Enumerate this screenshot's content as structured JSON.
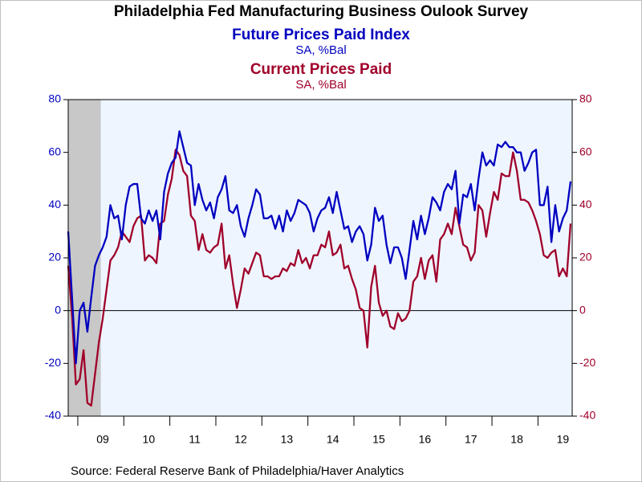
{
  "chart_data": {
    "type": "line",
    "title": "Philadelphia Fed Manufacturing Business Oulook Survey",
    "source": "Source:  Federal Reserve Bank of Philadelphia/Haver Analytics",
    "categories": [
      null,
      null,
      null,
      null,
      null,
      null,
      null,
      null,
      null,
      "09",
      null,
      null,
      null,
      null,
      null,
      null,
      null,
      null,
      null,
      null,
      null,
      "10",
      null,
      null,
      null,
      null,
      null,
      null,
      null,
      null,
      null,
      null,
      null,
      "11",
      null,
      null,
      null,
      null,
      null,
      null,
      null,
      null,
      null,
      null,
      null,
      "12",
      null,
      null,
      null,
      null,
      null,
      null,
      null,
      null,
      null,
      null,
      null,
      "13",
      null,
      null,
      null,
      null,
      null,
      null,
      null,
      null,
      null,
      null,
      null,
      "14",
      null,
      null,
      null,
      null,
      null,
      null,
      null,
      null,
      null,
      null,
      null,
      "15",
      null,
      null,
      null,
      null,
      null,
      null,
      null,
      null,
      null,
      null,
      null,
      "16",
      null,
      null,
      null,
      null,
      null,
      null,
      null,
      null,
      null,
      null,
      null,
      "17",
      null,
      null,
      null,
      null,
      null,
      null,
      null,
      null,
      null,
      null,
      null,
      "18",
      null,
      null,
      null,
      null,
      null,
      null,
      null,
      null,
      null,
      null,
      null,
      "19",
      null,
      null
    ],
    "shaded_range": [
      0,
      8
    ],
    "series": [
      {
        "name": "Future Prices Paid Index",
        "units": "SA, %Bal",
        "color": "#0000c0",
        "axis": "y",
        "values": [
          30,
          5,
          -20,
          0,
          3,
          -8,
          5,
          17,
          21,
          24,
          28,
          40,
          35,
          36,
          27,
          40,
          47,
          48,
          48,
          35,
          33,
          38,
          34,
          38,
          27,
          45,
          52,
          56,
          58,
          68,
          62,
          56,
          55,
          40,
          48,
          42,
          38,
          41,
          35,
          43,
          46,
          51,
          38,
          37,
          40,
          32,
          28,
          35,
          40,
          46,
          44,
          35,
          35,
          36,
          31,
          36,
          30,
          38,
          34,
          37,
          42,
          41,
          40,
          37,
          30,
          35,
          38,
          39,
          43,
          37,
          45,
          38,
          31,
          32,
          26,
          30,
          32,
          29,
          19,
          25,
          39,
          34,
          36,
          25,
          18,
          24,
          24,
          20,
          12,
          23,
          34,
          27,
          36,
          29,
          35,
          43,
          41,
          38,
          45,
          48,
          46,
          53,
          33,
          44,
          43,
          48,
          38,
          50,
          60,
          55,
          57,
          55,
          63,
          62,
          64,
          62,
          62,
          60,
          60,
          53,
          56,
          60,
          61,
          40,
          40,
          47,
          26,
          40,
          30,
          35,
          38,
          49
        ]
      },
      {
        "name": "Current Prices Paid",
        "units": "SA, %Bal",
        "color": "#a0002a",
        "axis": "y2",
        "values": [
          17,
          -2,
          -28,
          -26,
          -15,
          -35,
          -36,
          -24,
          -12,
          -3,
          8,
          19,
          21,
          24,
          30,
          28,
          26,
          32,
          35,
          36,
          19,
          21,
          20,
          18,
          33,
          34,
          44,
          50,
          61,
          59,
          53,
          51,
          36,
          34,
          23,
          29,
          23,
          22,
          24,
          25,
          33,
          16,
          21,
          10,
          1,
          8,
          16,
          14,
          18,
          22,
          21,
          13,
          13,
          12,
          13,
          13,
          16,
          15,
          18,
          17,
          23,
          18,
          20,
          16,
          21,
          21,
          25,
          24,
          30,
          21,
          22,
          25,
          16,
          17,
          12,
          8,
          1,
          0,
          -14,
          9,
          17,
          3,
          -2,
          0,
          -6,
          -7,
          -1,
          -4,
          -3,
          0,
          11,
          13,
          20,
          12,
          19,
          21,
          11,
          27,
          29,
          33,
          29,
          39,
          32,
          25,
          24,
          19,
          22,
          40,
          38,
          28,
          37,
          45,
          42,
          52,
          51,
          51,
          60,
          53,
          42,
          42,
          41,
          38,
          34,
          29,
          21,
          20,
          22,
          23,
          13,
          16,
          13,
          33
        ]
      }
    ],
    "ylim": [
      -40,
      80
    ],
    "yticks": [
      -40,
      -20,
      0,
      20,
      40,
      60,
      80
    ],
    "y2lim": [
      -40,
      80
    ],
    "y2ticks": [
      -40,
      -20,
      0,
      20,
      40,
      60,
      80
    ],
    "zero_line": true
  }
}
